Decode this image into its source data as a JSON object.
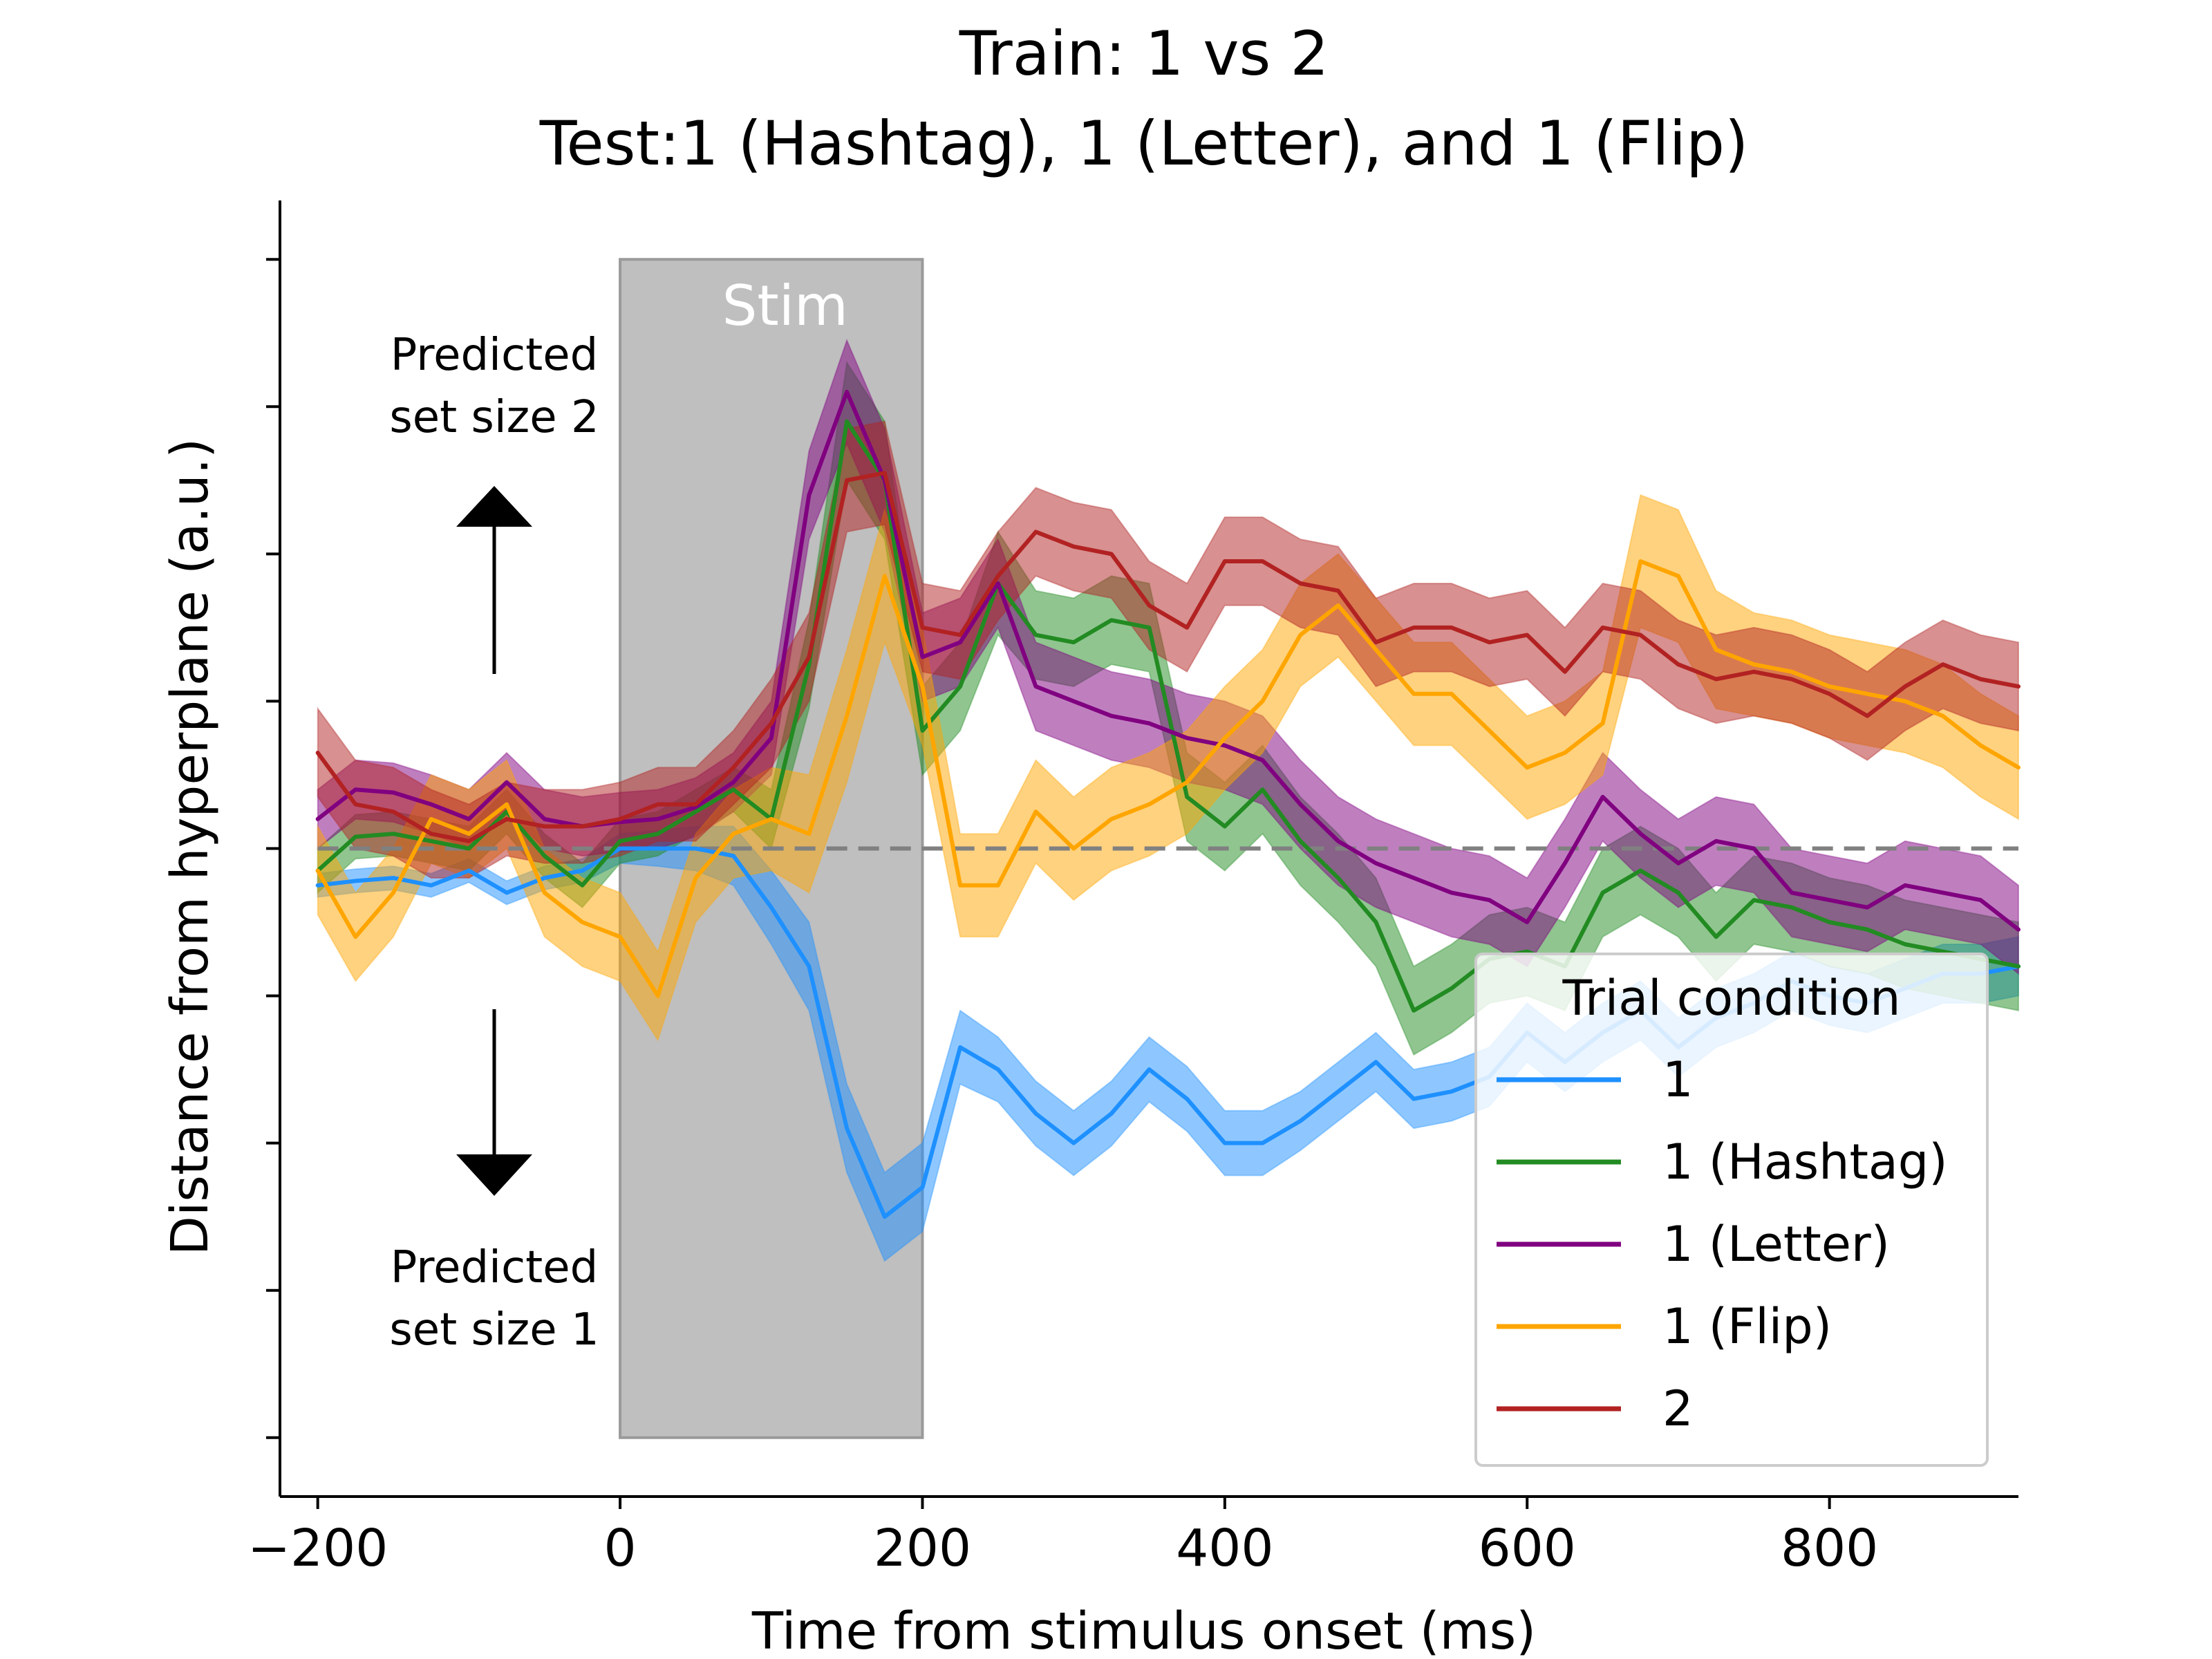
{
  "chart_data": {
    "type": "line",
    "title": "Train: 1 vs 2",
    "subtitle": "Test:1 (Hashtag), 1 (Letter), and 1 (Flip)",
    "xlabel": "Time from stimulus onset (ms)",
    "ylabel": "Distance from hyperplane (a.u.)",
    "xlim": [
      -225,
      925
    ],
    "ylim": [
      -4.4,
      4.4
    ],
    "xticks": [
      -200,
      0,
      200,
      400,
      600,
      800
    ],
    "xtick_labels": [
      "−200",
      "0",
      "200",
      "400",
      "600",
      "800"
    ],
    "yticks": [
      -4,
      -3,
      -2,
      -1,
      0,
      1,
      2,
      3,
      4
    ],
    "ytick_labels_visible": false,
    "grid": false,
    "reference_line": {
      "y": 0,
      "style": "dashed",
      "color": "#808080"
    },
    "stim_window": {
      "x": [
        0,
        200
      ],
      "label": "Stim",
      "color": "#bfbfbf"
    },
    "annotations": {
      "upper_line1": "Predicted",
      "upper_line2": "set size 2",
      "lower_line1": "Predicted",
      "lower_line2": "set size 1"
    },
    "legend": {
      "title": "Trial condition",
      "placement": "lower-right"
    },
    "x": [
      -200,
      -175,
      -150,
      -125,
      -100,
      -75,
      -50,
      -25,
      0,
      25,
      50,
      75,
      100,
      125,
      150,
      175,
      200,
      225,
      250,
      275,
      300,
      325,
      350,
      375,
      400,
      425,
      450,
      475,
      500,
      525,
      550,
      575,
      600,
      625,
      650,
      675,
      700,
      725,
      750,
      775,
      800,
      825,
      850,
      875,
      900,
      925
    ],
    "series": [
      {
        "name": "1",
        "color": "#1e90ff",
        "values": [
          -0.25,
          -0.22,
          -0.2,
          -0.25,
          -0.15,
          -0.3,
          -0.2,
          -0.15,
          0.0,
          0.0,
          0.0,
          -0.05,
          -0.4,
          -0.8,
          -1.9,
          -2.5,
          -2.3,
          -1.35,
          -1.5,
          -1.8,
          -2.0,
          -1.8,
          -1.5,
          -1.7,
          -2.0,
          -2.0,
          -1.85,
          -1.65,
          -1.45,
          -1.7,
          -1.65,
          -1.55,
          -1.25,
          -1.45,
          -1.25,
          -1.1,
          -1.35,
          -1.15,
          -1.05,
          -0.9,
          -1.0,
          -1.05,
          -0.95,
          -0.85,
          -0.85,
          -0.8
        ],
        "error": [
          0.08,
          0.08,
          0.08,
          0.08,
          0.08,
          0.08,
          0.08,
          0.08,
          0.1,
          0.12,
          0.15,
          0.2,
          0.25,
          0.3,
          0.3,
          0.3,
          0.3,
          0.25,
          0.22,
          0.22,
          0.22,
          0.22,
          0.22,
          0.22,
          0.22,
          0.22,
          0.2,
          0.2,
          0.2,
          0.2,
          0.2,
          0.2,
          0.2,
          0.2,
          0.2,
          0.2,
          0.2,
          0.2,
          0.2,
          0.2,
          0.2,
          0.2,
          0.2,
          0.2,
          0.2,
          0.2
        ]
      },
      {
        "name": "1 (Hashtag)",
        "color": "#228b22",
        "values": [
          -0.15,
          0.08,
          0.1,
          0.05,
          0.0,
          0.25,
          -0.05,
          -0.25,
          0.05,
          0.1,
          0.25,
          0.4,
          0.2,
          1.25,
          2.9,
          2.5,
          0.8,
          1.1,
          1.8,
          1.45,
          1.4,
          1.55,
          1.5,
          0.35,
          0.15,
          0.4,
          0.05,
          -0.2,
          -0.5,
          -1.1,
          -0.95,
          -0.75,
          -0.7,
          -0.8,
          -0.3,
          -0.15,
          -0.3,
          -0.6,
          -0.35,
          -0.4,
          -0.5,
          -0.55,
          -0.65,
          -0.7,
          -0.75,
          -0.8
        ],
        "error": [
          0.15,
          0.15,
          0.15,
          0.15,
          0.15,
          0.15,
          0.15,
          0.15,
          0.15,
          0.15,
          0.15,
          0.15,
          0.2,
          0.3,
          0.4,
          0.4,
          0.3,
          0.3,
          0.35,
          0.3,
          0.3,
          0.3,
          0.3,
          0.3,
          0.3,
          0.3,
          0.3,
          0.3,
          0.3,
          0.3,
          0.3,
          0.3,
          0.3,
          0.3,
          0.3,
          0.3,
          0.3,
          0.3,
          0.3,
          0.3,
          0.3,
          0.3,
          0.3,
          0.3,
          0.3,
          0.3
        ]
      },
      {
        "name": "1 (Letter)",
        "color": "#800080",
        "values": [
          0.2,
          0.4,
          0.38,
          0.3,
          0.2,
          0.45,
          0.2,
          0.15,
          0.18,
          0.2,
          0.28,
          0.45,
          0.75,
          2.4,
          3.1,
          2.5,
          1.3,
          1.4,
          1.8,
          1.1,
          1.0,
          0.9,
          0.85,
          0.75,
          0.7,
          0.6,
          0.3,
          0.05,
          -0.1,
          -0.2,
          -0.3,
          -0.35,
          -0.5,
          -0.1,
          0.35,
          0.1,
          -0.1,
          0.05,
          0.0,
          -0.3,
          -0.35,
          -0.4,
          -0.25,
          -0.3,
          -0.35,
          -0.55
        ],
        "error": [
          0.2,
          0.2,
          0.2,
          0.2,
          0.2,
          0.2,
          0.2,
          0.2,
          0.2,
          0.2,
          0.2,
          0.2,
          0.25,
          0.3,
          0.35,
          0.35,
          0.3,
          0.3,
          0.3,
          0.3,
          0.3,
          0.3,
          0.3,
          0.3,
          0.3,
          0.3,
          0.3,
          0.3,
          0.3,
          0.3,
          0.3,
          0.3,
          0.3,
          0.3,
          0.3,
          0.3,
          0.3,
          0.3,
          0.3,
          0.3,
          0.3,
          0.3,
          0.3,
          0.3,
          0.3,
          0.3
        ]
      },
      {
        "name": "1 (Flip)",
        "color": "#ffa500",
        "values": [
          -0.15,
          -0.6,
          -0.3,
          0.2,
          0.1,
          0.3,
          -0.3,
          -0.5,
          -0.6,
          -1.0,
          -0.2,
          0.1,
          0.2,
          0.1,
          0.9,
          1.85,
          1.1,
          -0.25,
          -0.25,
          0.25,
          0.0,
          0.2,
          0.3,
          0.45,
          0.75,
          1.0,
          1.45,
          1.65,
          1.35,
          1.05,
          1.05,
          0.8,
          0.55,
          0.65,
          0.85,
          1.95,
          1.85,
          1.35,
          1.25,
          1.2,
          1.1,
          1.05,
          1.0,
          0.9,
          0.7,
          0.55
        ],
        "error": [
          0.3,
          0.3,
          0.3,
          0.3,
          0.3,
          0.3,
          0.3,
          0.3,
          0.3,
          0.3,
          0.3,
          0.3,
          0.35,
          0.4,
          0.45,
          0.45,
          0.4,
          0.35,
          0.35,
          0.35,
          0.35,
          0.35,
          0.35,
          0.35,
          0.35,
          0.35,
          0.35,
          0.35,
          0.35,
          0.35,
          0.35,
          0.35,
          0.35,
          0.35,
          0.35,
          0.45,
          0.45,
          0.4,
          0.35,
          0.35,
          0.35,
          0.35,
          0.35,
          0.35,
          0.35,
          0.35
        ]
      },
      {
        "name": "2",
        "color": "#b22222",
        "values": [
          0.65,
          0.3,
          0.25,
          0.1,
          0.05,
          0.2,
          0.15,
          0.15,
          0.2,
          0.3,
          0.3,
          0.55,
          0.85,
          1.3,
          2.5,
          2.55,
          1.5,
          1.45,
          1.85,
          2.15,
          2.05,
          2.0,
          1.65,
          1.5,
          1.95,
          1.95,
          1.8,
          1.75,
          1.4,
          1.5,
          1.5,
          1.4,
          1.45,
          1.2,
          1.5,
          1.45,
          1.25,
          1.15,
          1.2,
          1.15,
          1.05,
          0.9,
          1.1,
          1.25,
          1.15,
          1.1
        ],
        "error": [
          0.3,
          0.3,
          0.3,
          0.3,
          0.25,
          0.25,
          0.25,
          0.25,
          0.25,
          0.25,
          0.25,
          0.25,
          0.3,
          0.3,
          0.35,
          0.35,
          0.3,
          0.3,
          0.3,
          0.3,
          0.3,
          0.3,
          0.3,
          0.3,
          0.3,
          0.3,
          0.3,
          0.3,
          0.3,
          0.3,
          0.3,
          0.3,
          0.3,
          0.3,
          0.3,
          0.3,
          0.3,
          0.3,
          0.3,
          0.3,
          0.3,
          0.3,
          0.3,
          0.3,
          0.3,
          0.3
        ]
      }
    ]
  }
}
